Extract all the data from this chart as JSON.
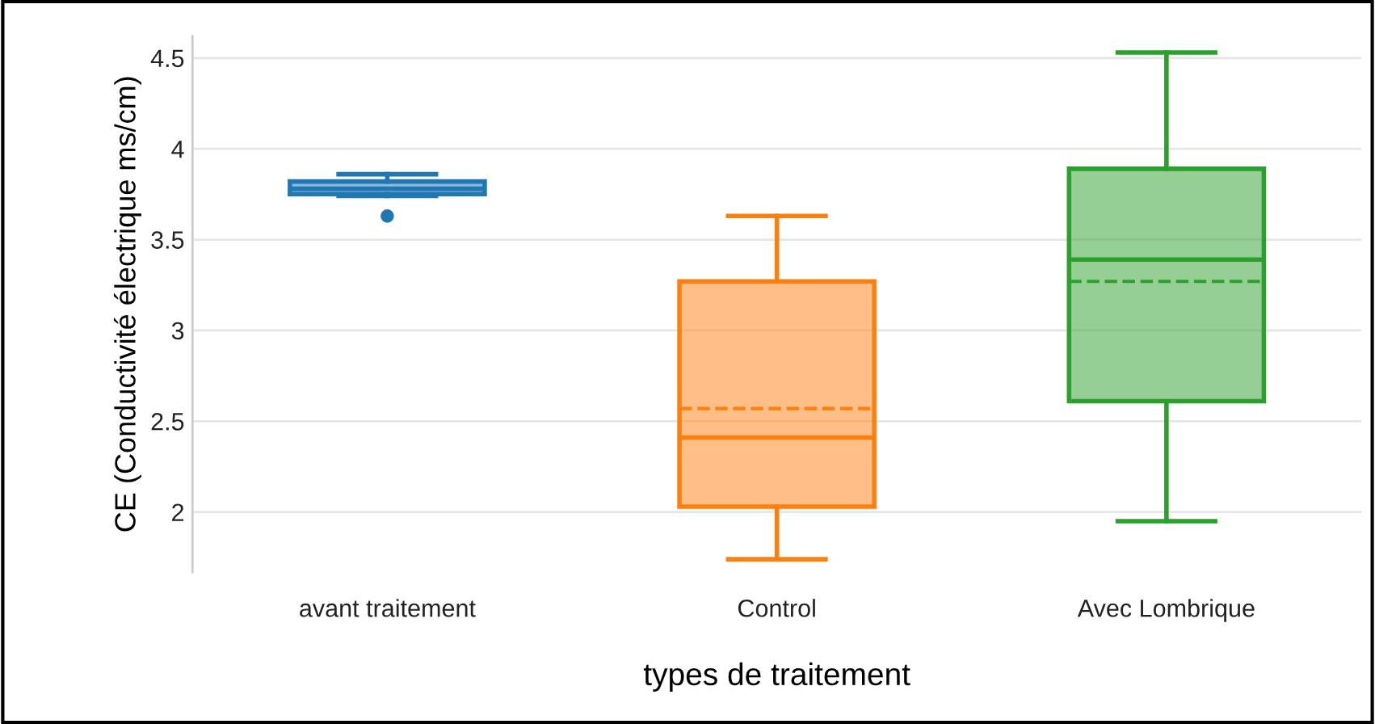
{
  "chart_data": {
    "type": "box",
    "xlabel": "types de traitement",
    "ylabel": "CE (Conductivité électrique ms/cm)",
    "categories": [
      "avant traitement",
      "Control",
      "Avec Lombrique"
    ],
    "colors": [
      "#1f77b4",
      "#ff7f0e",
      "#2ca02c"
    ],
    "boxes": [
      {
        "low": 3.74,
        "q1": 3.75,
        "median": 3.78,
        "q3": 3.82,
        "high": 3.86,
        "mean": 3.78,
        "outliers": [
          3.63
        ]
      },
      {
        "low": 1.74,
        "q1": 2.03,
        "median": 2.41,
        "q3": 3.27,
        "high": 3.63,
        "mean": 2.57
      },
      {
        "low": 1.95,
        "q1": 2.61,
        "median": 3.39,
        "q3": 3.89,
        "high": 4.53,
        "mean": 3.27
      }
    ],
    "ylim": [
      1.67,
      4.62
    ],
    "yticks": [
      2,
      2.5,
      3,
      3.5,
      4,
      4.5
    ],
    "grid": "y",
    "legend": false
  }
}
